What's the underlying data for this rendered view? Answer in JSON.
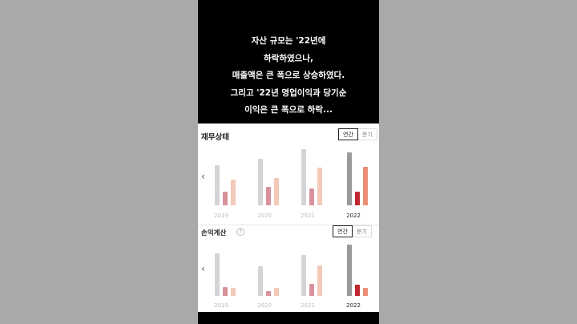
{
  "caption_lines": [
    "자산 규모는 '22년에",
    "하락하였으나,",
    "매출액은 큰 폭으로 상승하였다.",
    "그리고 '22년 영업이익과 당기순",
    "이익은 큰 폭으로 하락..."
  ],
  "financial": {
    "title": "재무상태",
    "toggle_annual": "연간",
    "toggle_quarter": "분기",
    "years": [
      "2019",
      "2020",
      "2021",
      "2022"
    ],
    "chart_data": {
      "type": "bar",
      "categories": [
        "2019",
        "2020",
        "2021",
        "2022"
      ],
      "series": [
        {
          "values": [
            50,
            58,
            70,
            66
          ]
        },
        {
          "values": [
            17,
            23,
            21,
            17
          ]
        },
        {
          "values": [
            32,
            34,
            47,
            48
          ]
        }
      ],
      "ylim": [
        0,
        75
      ]
    }
  },
  "income": {
    "title": "손익계산",
    "toggle_annual": "연간",
    "toggle_quarter": "분기",
    "years": [
      "2019",
      "2020",
      "2021",
      "2022"
    ],
    "chart_data": {
      "type": "bar",
      "categories": [
        "2019",
        "2020",
        "2021",
        "2022"
      ],
      "series": [
        {
          "values": [
            53,
            37,
            51,
            64
          ]
        },
        {
          "values": [
            11,
            6,
            15,
            14
          ]
        },
        {
          "values": [
            10,
            10,
            38,
            10
          ]
        }
      ],
      "ylim": [
        0,
        70
      ]
    }
  },
  "colors": {
    "past": [
      "#d4d4d4",
      "#d9929c",
      "#f3c9b8"
    ],
    "current": [
      "#9a9a9a",
      "#c1272f",
      "#ea8e74"
    ]
  },
  "icons": {
    "chevron": "chevron-left-icon",
    "help": "question-circle-icon"
  }
}
